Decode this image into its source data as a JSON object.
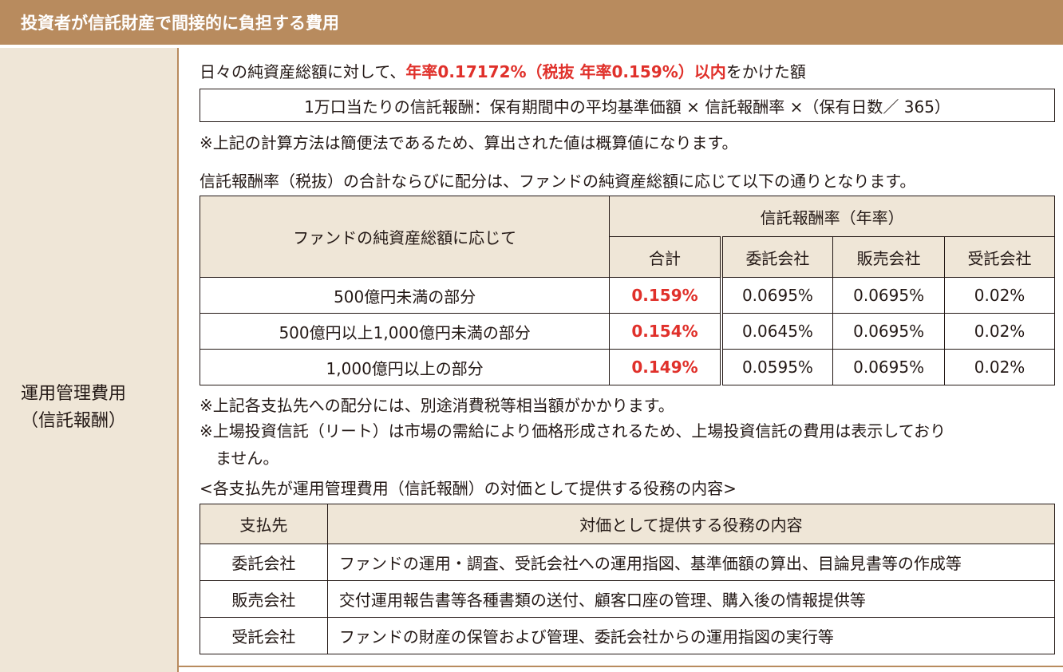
{
  "header": {
    "title": "投資者が信託財産で間接的に負担する費用"
  },
  "left": {
    "label_line1": "運用管理費用",
    "label_line2": "（信託報酬）"
  },
  "intro": {
    "prefix": "日々の純資産総額に対して、",
    "highlight": "年率0.17172%（税抜 年率0.159%）以内",
    "suffix": "をかけた額"
  },
  "formula": "1万口当たりの信託報酬：保有期間中の平均基準価額 × 信託報酬率 ×（保有日数／ 365）",
  "note1": "※上記の計算方法は簡便法であるため、算出された値は概算値になります。",
  "rate_intro": "信託報酬率（税抜）の合計ならびに配分は、ファンドの純資産総額に応じて以下の通りとなります。",
  "rate_table": {
    "head_fund": "ファンドの純資産総額に応じて",
    "head_rate": "信託報酬率（年率）",
    "cols": [
      "合計",
      "委託会社",
      "販売会社",
      "受託会社"
    ],
    "rows": [
      {
        "label": "500億円未満の部分",
        "total": "0.159%",
        "itaku": "0.0695%",
        "hanbai": "0.0695%",
        "jutaku": "0.02%"
      },
      {
        "label": "500億円以上1,000億円未満の部分",
        "total": "0.154%",
        "itaku": "0.0645%",
        "hanbai": "0.0695%",
        "jutaku": "0.02%"
      },
      {
        "label": "1,000億円以上の部分",
        "total": "0.149%",
        "itaku": "0.0595%",
        "hanbai": "0.0695%",
        "jutaku": "0.02%"
      }
    ]
  },
  "note2": "※上記各支払先への配分には、別途消費税等相当額がかかります。",
  "note3_line1": "※上場投資信託（リート）は市場の需給により価格形成されるため、上場投資信託の費用は表示しており",
  "note3_line2": "ません。",
  "services_title": "<各支払先が運用管理費用（信託報酬）の対価として提供する役務の内容>",
  "services_table": {
    "head_payee": "支払先",
    "head_content": "対価として提供する役務の内容",
    "rows": [
      {
        "payee": "委託会社",
        "content": "ファンドの運用・調査、受託会社への運用指図、基準価額の算出、目論見書等の作成等"
      },
      {
        "payee": "販売会社",
        "content": "交付運用報告書等各種書類の送付、顧客口座の管理、購入後の情報提供等"
      },
      {
        "payee": "受託会社",
        "content": "ファンドの財産の保管および管理、委託会社からの運用指図の実行等"
      }
    ]
  },
  "colors": {
    "brown": "#b88b5e",
    "beige": "#efe6d7",
    "red": "#e0302a"
  }
}
